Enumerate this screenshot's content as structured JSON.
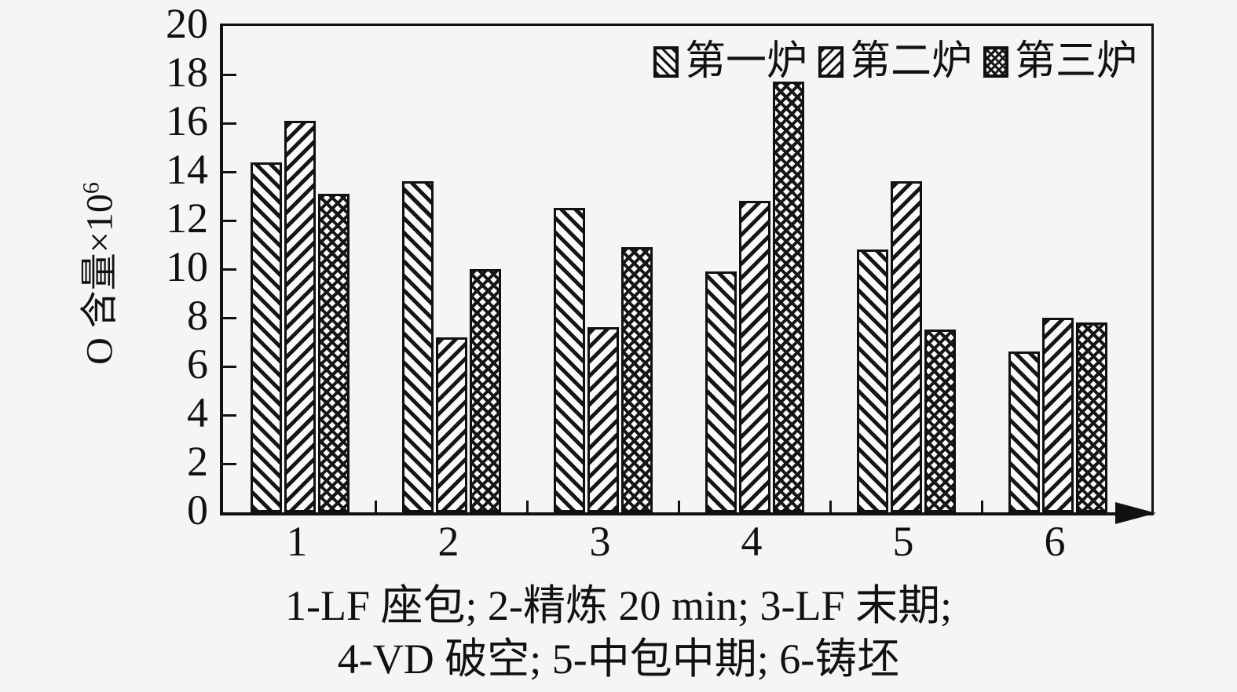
{
  "colors": {
    "ink": "#111111",
    "background": "#f5f5f3",
    "bar_fill": "#fafaf8"
  },
  "chart_data": {
    "type": "bar",
    "title": "",
    "xlabel": "",
    "ylabel": "O 含量×10⁶",
    "ylabel_base": "O 含量×10",
    "ylabel_exponent": "6",
    "ylim": [
      0,
      20
    ],
    "ytick_step": 2,
    "grid": false,
    "legend_position": "top-right-inside",
    "categories": [
      "1",
      "2",
      "3",
      "4",
      "5",
      "6"
    ],
    "series": [
      {
        "name": "第一炉",
        "pattern": "diagonal-backslash-hatch",
        "values": [
          14.4,
          13.6,
          12.5,
          9.9,
          10.8,
          6.6
        ]
      },
      {
        "name": "第二炉",
        "pattern": "diagonal-slash-hatch",
        "values": [
          16.1,
          7.2,
          7.6,
          12.8,
          13.6,
          8.0
        ]
      },
      {
        "name": "第三炉",
        "pattern": "dense-crosshatch",
        "values": [
          13.1,
          10.0,
          10.9,
          17.7,
          7.5,
          7.8
        ]
      }
    ]
  },
  "caption": {
    "line1": "1-LF 座包; 2-精炼 20 min; 3-LF 末期;",
    "line2": "4-VD 破空; 5-中包中期; 6-铸坯"
  }
}
